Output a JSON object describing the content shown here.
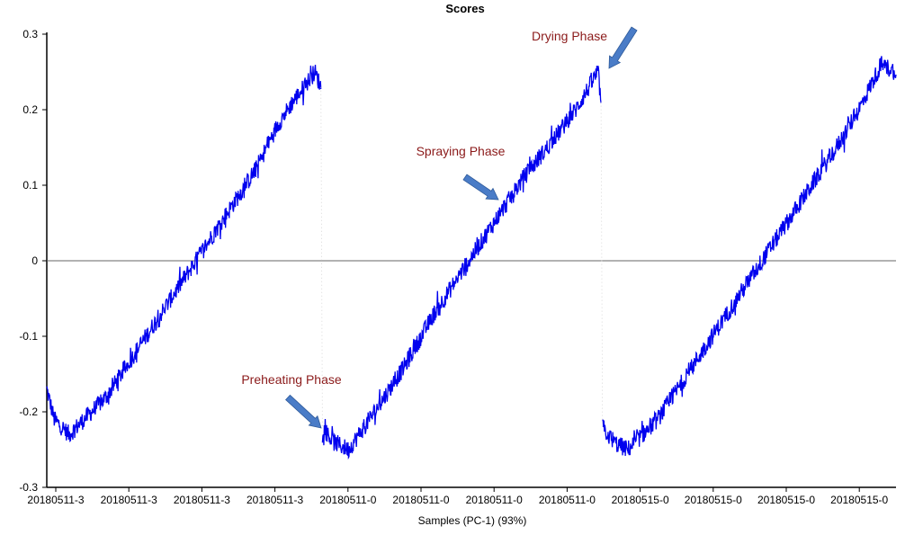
{
  "chart_data": {
    "type": "line",
    "title": "Scores",
    "xlabel": "Samples (PC-1) (93%)",
    "ylabel": "",
    "ylim": [
      -0.3,
      0.3
    ],
    "yticks": [
      0.3,
      0.2,
      0.1,
      0,
      -0.1,
      -0.2,
      -0.3
    ],
    "yticklabels": [
      "0.3",
      "0.2",
      "0.1",
      "0",
      "-0.1",
      "-0.2",
      "-0.3"
    ],
    "xticklabels": [
      "20180511-3",
      "20180511-3",
      "20180511-3",
      "20180511-3",
      "20180511-0",
      "20180511-0",
      "20180511-0",
      "20180511-0",
      "20180515-0",
      "20180515-0",
      "20180515-0",
      "20180515-0"
    ],
    "xlim": [
      0,
      1140
    ],
    "zero_line": true,
    "grid": false,
    "line_color": "#0000ee",
    "segments": [
      {
        "x": [
          0,
          10,
          30,
          80,
          120,
          160,
          200,
          240,
          280,
          310,
          330,
          360,
          368
        ],
        "y": [
          -0.17,
          -0.21,
          -0.23,
          -0.18,
          -0.12,
          -0.06,
          0.0,
          0.06,
          0.12,
          0.18,
          0.21,
          0.25,
          0.23
        ]
      },
      {
        "x": [
          370,
          385,
          405,
          440,
          480,
          520,
          560,
          600,
          640,
          680,
          710,
          740,
          744
        ],
        "y": [
          -0.22,
          -0.24,
          -0.25,
          -0.2,
          -0.14,
          -0.07,
          -0.01,
          0.05,
          0.11,
          0.16,
          0.2,
          0.25,
          0.21
        ]
      },
      {
        "x": [
          746,
          760,
          780,
          820,
          860,
          900,
          940,
          980,
          1020,
          1060,
          1090,
          1120,
          1140
        ],
        "y": [
          -0.22,
          -0.24,
          -0.25,
          -0.21,
          -0.15,
          -0.09,
          -0.03,
          0.03,
          0.09,
          0.15,
          0.2,
          0.26,
          0.25
        ]
      }
    ],
    "noise_amplitude": 0.012,
    "annotations": [
      {
        "text": "Drying Phase",
        "x": 740,
        "y": 0.255
      },
      {
        "text": "Spraying Phase",
        "x": 585,
        "y": 0.08
      },
      {
        "text": "Preheating Phase",
        "x": 365,
        "y": -0.225
      }
    ]
  }
}
